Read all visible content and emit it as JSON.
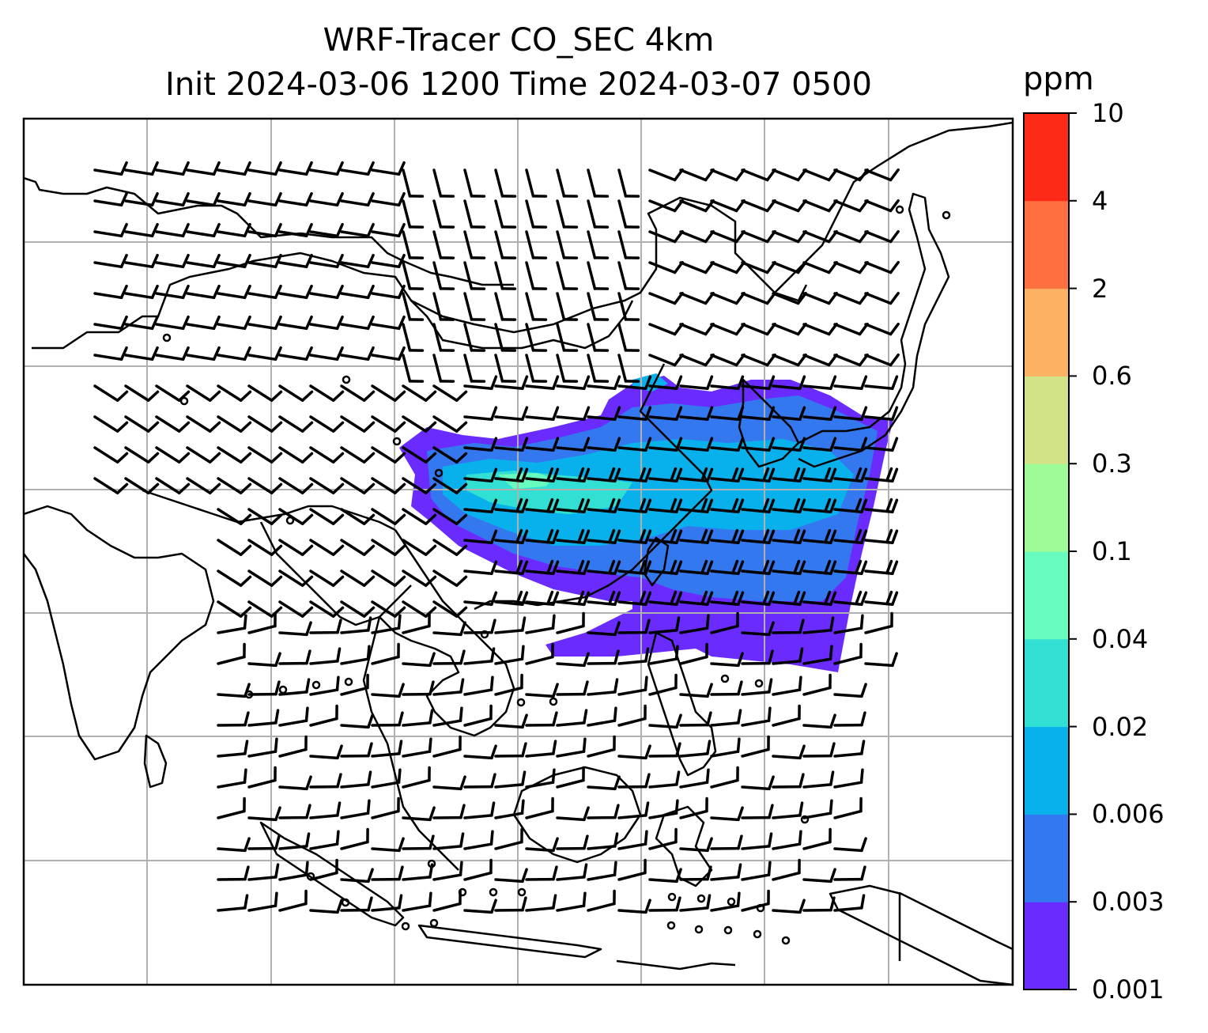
{
  "title": {
    "line1": "WRF-Tracer CO_SEC 4km",
    "line2": "Init 2024-03-06 1200 Time 2024-03-07 0500"
  },
  "colorbar": {
    "unit": "ppm",
    "levels": [
      "0.001",
      "0.003",
      "0.006",
      "0.02",
      "0.04",
      "0.1",
      "0.3",
      "0.6",
      "2",
      "4",
      "10"
    ],
    "colors": [
      "#6a2bff",
      "#3478f0",
      "#09b1ec",
      "#31e0d2",
      "#68fbbe",
      "#9ffb98",
      "#d1e287",
      "#fdb163",
      "#fe7040",
      "#fe2a17"
    ]
  },
  "map": {
    "coastline_color": "#000000",
    "gridline_color": "#b0b0b0",
    "wind_barb_color": "#000000"
  }
}
